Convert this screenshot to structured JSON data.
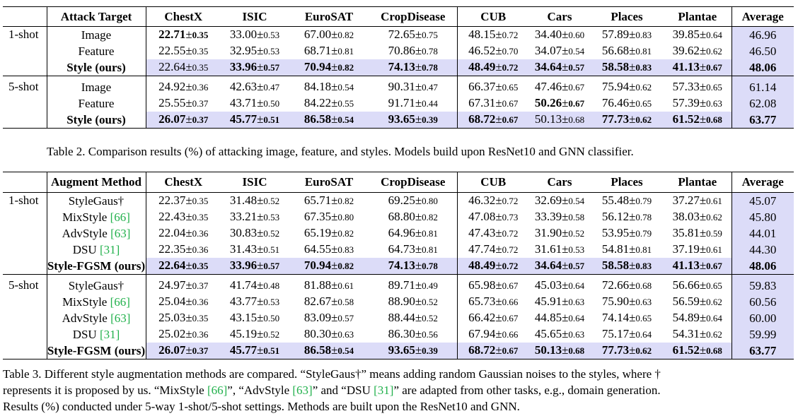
{
  "table2": {
    "header": [
      "Attack Target",
      "ChestX",
      "ISIC",
      "EuroSAT",
      "CropDisease",
      "CUB",
      "Cars",
      "Places",
      "Plantae",
      "Average"
    ],
    "groups": [
      {
        "shot": "1-shot",
        "rows": [
          {
            "method": "Image",
            "cells": [
              [
                "22.71",
                "0.35",
                true
              ],
              [
                "33.00",
                "0.53",
                false
              ],
              [
                "67.00",
                "0.82",
                false
              ],
              [
                "72.65",
                "0.75",
                false
              ],
              [
                "48.15",
                "0.72",
                false
              ],
              [
                "34.40",
                "0.60",
                false
              ],
              [
                "57.89",
                "0.83",
                false
              ],
              [
                "39.85",
                "0.64",
                false
              ]
            ],
            "avg": "46.96",
            "bold": false,
            "highlight": false
          },
          {
            "method": "Feature",
            "cells": [
              [
                "22.55",
                "0.35",
                false
              ],
              [
                "32.95",
                "0.53",
                false
              ],
              [
                "68.71",
                "0.81",
                false
              ],
              [
                "70.86",
                "0.78",
                false
              ],
              [
                "46.52",
                "0.70",
                false
              ],
              [
                "34.07",
                "0.54",
                false
              ],
              [
                "56.68",
                "0.81",
                false
              ],
              [
                "39.62",
                "0.62",
                false
              ]
            ],
            "avg": "46.50",
            "bold": false,
            "highlight": false
          },
          {
            "method": "Style (ours)",
            "cells": [
              [
                "22.64",
                "0.35",
                false
              ],
              [
                "33.96",
                "0.57",
                true
              ],
              [
                "70.94",
                "0.82",
                true
              ],
              [
                "74.13",
                "0.78",
                true
              ],
              [
                "48.49",
                "0.72",
                true
              ],
              [
                "34.64",
                "0.57",
                true
              ],
              [
                "58.58",
                "0.83",
                true
              ],
              [
                "41.13",
                "0.67",
                true
              ]
            ],
            "avg": "48.06",
            "bold": true,
            "highlight": true
          }
        ]
      },
      {
        "shot": "5-shot",
        "rows": [
          {
            "method": "Image",
            "cells": [
              [
                "24.92",
                "0.36",
                false
              ],
              [
                "42.63",
                "0.47",
                false
              ],
              [
                "84.18",
                "0.54",
                false
              ],
              [
                "90.31",
                "0.47",
                false
              ],
              [
                "66.37",
                "0.65",
                false
              ],
              [
                "47.46",
                "0.67",
                false
              ],
              [
                "75.94",
                "0.62",
                false
              ],
              [
                "57.33",
                "0.65",
                false
              ]
            ],
            "avg": "61.14",
            "bold": false,
            "highlight": false
          },
          {
            "method": "Feature",
            "cells": [
              [
                "25.55",
                "0.37",
                false
              ],
              [
                "43.71",
                "0.50",
                false
              ],
              [
                "84.22",
                "0.55",
                false
              ],
              [
                "91.71",
                "0.44",
                false
              ],
              [
                "67.31",
                "0.67",
                false
              ],
              [
                "50.26",
                "0.67",
                true
              ],
              [
                "76.46",
                "0.65",
                false
              ],
              [
                "57.39",
                "0.63",
                false
              ]
            ],
            "avg": "62.08",
            "bold": false,
            "highlight": false
          },
          {
            "method": "Style (ours)",
            "cells": [
              [
                "26.07",
                "0.37",
                true
              ],
              [
                "45.77",
                "0.51",
                true
              ],
              [
                "86.58",
                "0.54",
                true
              ],
              [
                "93.65",
                "0.39",
                true
              ],
              [
                "68.72",
                "0.67",
                true
              ],
              [
                "50.13",
                "0.68",
                false
              ],
              [
                "77.73",
                "0.62",
                true
              ],
              [
                "61.52",
                "0.68",
                true
              ]
            ],
            "avg": "63.77",
            "bold": true,
            "highlight": true
          }
        ]
      }
    ],
    "caption": "Table 2. Comparison results (%) of attacking image, feature, and styles. Models build upon ResNet10 and GNN classifier."
  },
  "table3": {
    "header": [
      "Augment Method",
      "ChestX",
      "ISIC",
      "EuroSAT",
      "CropDisease",
      "CUB",
      "Cars",
      "Places",
      "Plantae",
      "Average"
    ],
    "groups": [
      {
        "shot": "1-shot",
        "rows": [
          {
            "method": "StyleGaus†",
            "ref": "",
            "cells": [
              [
                "22.37",
                "0.35",
                false
              ],
              [
                "31.48",
                "0.52",
                false
              ],
              [
                "65.71",
                "0.82",
                false
              ],
              [
                "69.25",
                "0.80",
                false
              ],
              [
                "46.32",
                "0.72",
                false
              ],
              [
                "32.69",
                "0.54",
                false
              ],
              [
                "55.48",
                "0.79",
                false
              ],
              [
                "37.27",
                "0.61",
                false
              ]
            ],
            "avg": "45.07",
            "bold": false,
            "highlight": false
          },
          {
            "method": "MixStyle",
            "ref": "[66]",
            "cells": [
              [
                "22.43",
                "0.35",
                false
              ],
              [
                "33.21",
                "0.53",
                false
              ],
              [
                "67.35",
                "0.80",
                false
              ],
              [
                "68.80",
                "0.82",
                false
              ],
              [
                "47.08",
                "0.73",
                false
              ],
              [
                "33.39",
                "0.58",
                false
              ],
              [
                "56.12",
                "0.78",
                false
              ],
              [
                "38.03",
                "0.62",
                false
              ]
            ],
            "avg": "45.80",
            "bold": false,
            "highlight": false
          },
          {
            "method": "AdvStyle",
            "ref": "[63]",
            "cells": [
              [
                "22.04",
                "0.36",
                false
              ],
              [
                "30.83",
                "0.52",
                false
              ],
              [
                "65.19",
                "0.82",
                false
              ],
              [
                "64.96",
                "0.81",
                false
              ],
              [
                "47.43",
                "0.72",
                false
              ],
              [
                "31.90",
                "0.52",
                false
              ],
              [
                "53.95",
                "0.79",
                false
              ],
              [
                "35.81",
                "0.59",
                false
              ]
            ],
            "avg": "44.01",
            "bold": false,
            "highlight": false
          },
          {
            "method": "DSU",
            "ref": "[31]",
            "cells": [
              [
                "22.35",
                "0.36",
                false
              ],
              [
                "31.43",
                "0.51",
                false
              ],
              [
                "64.55",
                "0.83",
                false
              ],
              [
                "64.73",
                "0.81",
                false
              ],
              [
                "47.74",
                "0.72",
                false
              ],
              [
                "31.61",
                "0.53",
                false
              ],
              [
                "54.81",
                "0.81",
                false
              ],
              [
                "37.19",
                "0.61",
                false
              ]
            ],
            "avg": "44.30",
            "bold": false,
            "highlight": false
          },
          {
            "method": "Style-FGSM (ours)",
            "ref": "",
            "cells": [
              [
                "22.64",
                "0.35",
                true
              ],
              [
                "33.96",
                "0.57",
                true
              ],
              [
                "70.94",
                "0.82",
                true
              ],
              [
                "74.13",
                "0.78",
                true
              ],
              [
                "48.49",
                "0.72",
                true
              ],
              [
                "34.64",
                "0.57",
                true
              ],
              [
                "58.58",
                "0.83",
                true
              ],
              [
                "41.13",
                "0.67",
                true
              ]
            ],
            "avg": "48.06",
            "bold": true,
            "highlight": true
          }
        ]
      },
      {
        "shot": "5-shot",
        "rows": [
          {
            "method": "StyleGaus†",
            "ref": "",
            "cells": [
              [
                "24.97",
                "0.37",
                false
              ],
              [
                "41.74",
                "0.48",
                false
              ],
              [
                "81.88",
                "0.61",
                false
              ],
              [
                "89.71",
                "0.49",
                false
              ],
              [
                "65.98",
                "0.67",
                false
              ],
              [
                "45.03",
                "0.64",
                false
              ],
              [
                "72.66",
                "0.68",
                false
              ],
              [
                "56.66",
                "0.65",
                false
              ]
            ],
            "avg": "59.83",
            "bold": false,
            "highlight": false
          },
          {
            "method": "MixStyle",
            "ref": "[66]",
            "cells": [
              [
                "25.04",
                "0.36",
                false
              ],
              [
                "43.77",
                "0.53",
                false
              ],
              [
                "82.67",
                "0.58",
                false
              ],
              [
                "88.90",
                "0.52",
                false
              ],
              [
                "65.73",
                "0.66",
                false
              ],
              [
                "45.91",
                "0.63",
                false
              ],
              [
                "75.90",
                "0.63",
                false
              ],
              [
                "56.59",
                "0.62",
                false
              ]
            ],
            "avg": "60.56",
            "bold": false,
            "highlight": false
          },
          {
            "method": "AdvStyle",
            "ref": "[63]",
            "cells": [
              [
                "25.03",
                "0.35",
                false
              ],
              [
                "43.15",
                "0.50",
                false
              ],
              [
                "83.09",
                "0.57",
                false
              ],
              [
                "88.44",
                "0.52",
                false
              ],
              [
                "66.42",
                "0.67",
                false
              ],
              [
                "44.85",
                "0.64",
                false
              ],
              [
                "74.14",
                "0.65",
                false
              ],
              [
                "54.89",
                "0.64",
                false
              ]
            ],
            "avg": "60.00",
            "bold": false,
            "highlight": false
          },
          {
            "method": "DSU",
            "ref": "[31]",
            "cells": [
              [
                "25.02",
                "0.36",
                false
              ],
              [
                "45.19",
                "0.52",
                false
              ],
              [
                "80.30",
                "0.63",
                false
              ],
              [
                "86.30",
                "0.56",
                false
              ],
              [
                "67.94",
                "0.66",
                false
              ],
              [
                "45.65",
                "0.63",
                false
              ],
              [
                "75.17",
                "0.64",
                false
              ],
              [
                "54.31",
                "0.62",
                false
              ]
            ],
            "avg": "59.99",
            "bold": false,
            "highlight": false
          },
          {
            "method": "Style-FGSM (ours)",
            "ref": "",
            "cells": [
              [
                "26.07",
                "0.37",
                true
              ],
              [
                "45.77",
                "0.51",
                true
              ],
              [
                "86.58",
                "0.54",
                true
              ],
              [
                "93.65",
                "0.39",
                true
              ],
              [
                "68.72",
                "0.67",
                true
              ],
              [
                "50.13",
                "0.68",
                true
              ],
              [
                "77.73",
                "0.62",
                true
              ],
              [
                "61.52",
                "0.68",
                true
              ]
            ],
            "avg": "63.77",
            "bold": true,
            "highlight": true
          }
        ]
      }
    ],
    "caption_line1": "Table 3. Different style augmentation methods are compared. “StyleGaus†” means adding random Gaussian noises to the styles, where †",
    "caption_line2a": "represents it is proposed by us. “MixStyle ",
    "caption_ref1": "[66]",
    "caption_line2b": "”, “AdvStyle ",
    "caption_ref2": "[63]",
    "caption_line2c": "” and “DSU ",
    "caption_ref3": "[31]",
    "caption_line2d": "” are adapted from other tasks, e.g., domain generation.",
    "caption_line3": "Results (%) conducted under 5-way 1-shot/5-shot settings. Methods are built upon the ResNet10 and GNN."
  },
  "symbols": {
    "pm": "±"
  },
  "colors": {
    "highlight": "#dcdcf8",
    "ref_link": "#22b14c"
  }
}
